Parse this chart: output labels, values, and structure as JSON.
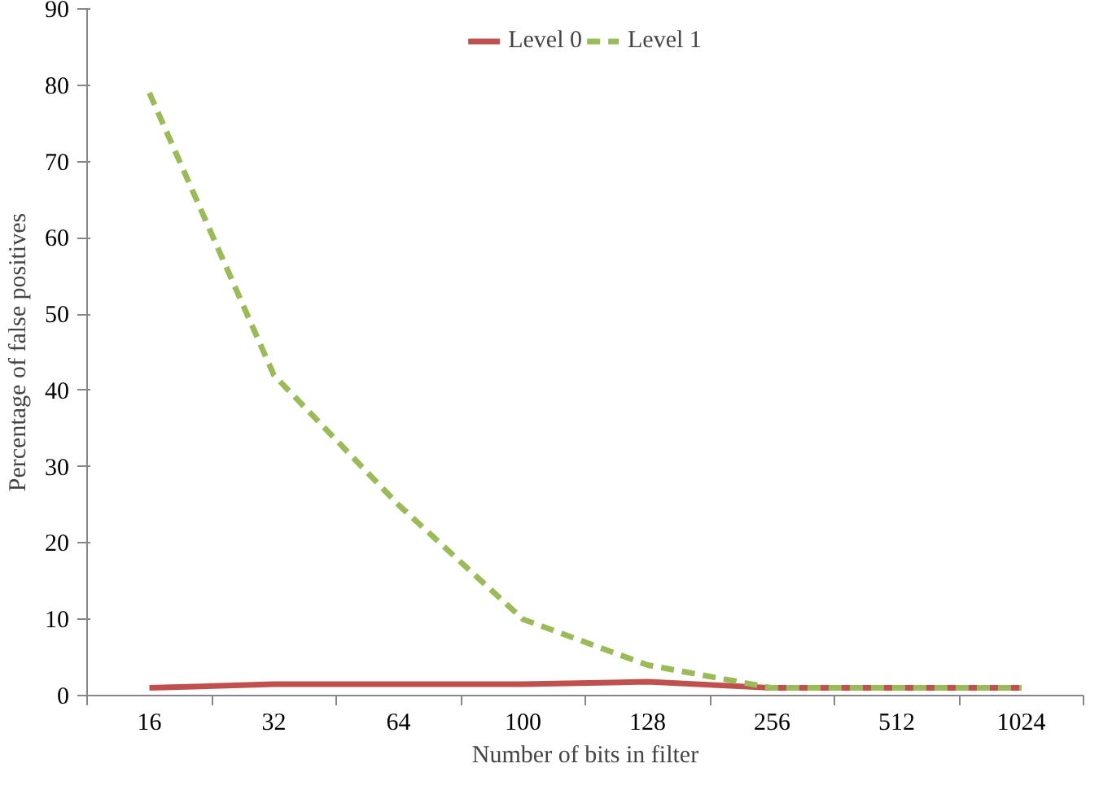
{
  "chart_data": {
    "type": "line",
    "xlabel": "Number of bits in filter",
    "ylabel": "Percentage of false positives",
    "categories": [
      "16",
      "32",
      "64",
      "100",
      "128",
      "256",
      "512",
      "1024"
    ],
    "series": [
      {
        "name": "Level 0",
        "color": "#c0504d",
        "line_style": "solid",
        "values": [
          1,
          1.5,
          1.5,
          1.5,
          1.8,
          1,
          1,
          1
        ]
      },
      {
        "name": "Level 1",
        "color": "#9bbb59",
        "line_style": "dashed",
        "values": [
          79,
          42,
          25,
          10,
          4,
          1,
          1,
          1
        ]
      }
    ],
    "ylim": [
      0,
      90
    ],
    "yticks": [
      0,
      10,
      20,
      30,
      40,
      50,
      60,
      70,
      80,
      90
    ],
    "grid": false,
    "legend": "top",
    "marker": "none"
  }
}
